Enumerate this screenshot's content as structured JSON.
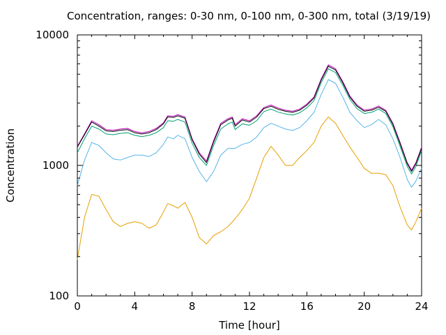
{
  "chart_data": {
    "type": "line",
    "title": "Concentration, ranges: 0-30 nm, 0-100 nm, 0-300 nm, total (3/19/19)",
    "xlabel": "Time [hour]",
    "ylabel": "Concentration",
    "xlim": [
      0,
      24
    ],
    "ylim": [
      100,
      10000
    ],
    "y_scale": "log",
    "grid": false,
    "x_ticks": [
      0,
      4,
      8,
      12,
      16,
      20,
      24
    ],
    "x_tick_labels": [
      "0",
      "4",
      "8",
      "12",
      "16",
      "20",
      "24"
    ],
    "y_ticks": [
      100,
      1000,
      10000
    ],
    "y_tick_labels": [
      "100",
      "1000",
      "10000"
    ],
    "series": [
      {
        "color": "#c000c0",
        "points": [
          [
            0,
            1400
          ],
          [
            0.5,
            1750
          ],
          [
            1.0,
            2200
          ],
          [
            1.5,
            2050
          ],
          [
            2.0,
            1880
          ],
          [
            2.5,
            1860
          ],
          [
            3.0,
            1900
          ],
          [
            3.5,
            1920
          ],
          [
            4.0,
            1820
          ],
          [
            4.5,
            1780
          ],
          [
            5.0,
            1820
          ],
          [
            5.5,
            1920
          ],
          [
            6.0,
            2120
          ],
          [
            6.3,
            2400
          ],
          [
            6.7,
            2380
          ],
          [
            7.0,
            2450
          ],
          [
            7.5,
            2350
          ],
          [
            8.0,
            1600
          ],
          [
            8.5,
            1250
          ],
          [
            9.0,
            1080
          ],
          [
            9.5,
            1550
          ],
          [
            10.0,
            2100
          ],
          [
            10.5,
            2280
          ],
          [
            10.8,
            2350
          ],
          [
            11.0,
            2050
          ],
          [
            11.5,
            2280
          ],
          [
            12.0,
            2200
          ],
          [
            12.5,
            2400
          ],
          [
            13.0,
            2780
          ],
          [
            13.5,
            2900
          ],
          [
            14.0,
            2750
          ],
          [
            14.5,
            2650
          ],
          [
            15.0,
            2600
          ],
          [
            15.5,
            2700
          ],
          [
            16.0,
            2950
          ],
          [
            16.5,
            3350
          ],
          [
            17.0,
            4600
          ],
          [
            17.5,
            5900
          ],
          [
            18.0,
            5500
          ],
          [
            18.5,
            4400
          ],
          [
            19.0,
            3400
          ],
          [
            19.5,
            2900
          ],
          [
            20.0,
            2650
          ],
          [
            20.5,
            2700
          ],
          [
            21.0,
            2850
          ],
          [
            21.5,
            2650
          ],
          [
            22.0,
            2100
          ],
          [
            22.5,
            1500
          ],
          [
            23.0,
            1050
          ],
          [
            23.3,
            920
          ],
          [
            23.6,
            1050
          ],
          [
            24.0,
            1380
          ]
        ]
      },
      {
        "color": "#000000",
        "points": [
          [
            0,
            1380
          ],
          [
            0.5,
            1720
          ],
          [
            1.0,
            2150
          ],
          [
            1.5,
            2000
          ],
          [
            2.0,
            1840
          ],
          [
            2.5,
            1820
          ],
          [
            3.0,
            1860
          ],
          [
            3.5,
            1880
          ],
          [
            4.0,
            1780
          ],
          [
            4.5,
            1740
          ],
          [
            5.0,
            1780
          ],
          [
            5.5,
            1880
          ],
          [
            6.0,
            2080
          ],
          [
            6.3,
            2350
          ],
          [
            6.7,
            2330
          ],
          [
            7.0,
            2400
          ],
          [
            7.5,
            2300
          ],
          [
            8.0,
            1570
          ],
          [
            8.5,
            1220
          ],
          [
            9.0,
            1050
          ],
          [
            9.5,
            1510
          ],
          [
            10.0,
            2050
          ],
          [
            10.5,
            2230
          ],
          [
            10.8,
            2300
          ],
          [
            11.0,
            2000
          ],
          [
            11.5,
            2230
          ],
          [
            12.0,
            2150
          ],
          [
            12.5,
            2350
          ],
          [
            13.0,
            2720
          ],
          [
            13.5,
            2840
          ],
          [
            14.0,
            2690
          ],
          [
            14.5,
            2600
          ],
          [
            15.0,
            2550
          ],
          [
            15.5,
            2650
          ],
          [
            16.0,
            2890
          ],
          [
            16.5,
            3280
          ],
          [
            17.0,
            4500
          ],
          [
            17.5,
            5750
          ],
          [
            18.0,
            5380
          ],
          [
            18.5,
            4300
          ],
          [
            19.0,
            3330
          ],
          [
            19.5,
            2840
          ],
          [
            20.0,
            2600
          ],
          [
            20.5,
            2650
          ],
          [
            21.0,
            2790
          ],
          [
            21.5,
            2600
          ],
          [
            22.0,
            2060
          ],
          [
            22.5,
            1470
          ],
          [
            23.0,
            1030
          ],
          [
            23.3,
            900
          ],
          [
            23.6,
            1030
          ],
          [
            24.0,
            1350
          ]
        ]
      },
      {
        "color": "#009e73",
        "points": [
          [
            0,
            1250
          ],
          [
            0.5,
            1600
          ],
          [
            1.0,
            2000
          ],
          [
            1.5,
            1900
          ],
          [
            2.0,
            1740
          ],
          [
            2.5,
            1720
          ],
          [
            3.0,
            1760
          ],
          [
            3.5,
            1780
          ],
          [
            4.0,
            1700
          ],
          [
            4.5,
            1660
          ],
          [
            5.0,
            1700
          ],
          [
            5.5,
            1780
          ],
          [
            6.0,
            1950
          ],
          [
            6.3,
            2200
          ],
          [
            6.7,
            2180
          ],
          [
            7.0,
            2250
          ],
          [
            7.5,
            2150
          ],
          [
            8.0,
            1480
          ],
          [
            8.5,
            1150
          ],
          [
            9.0,
            1000
          ],
          [
            9.5,
            1420
          ],
          [
            10.0,
            1900
          ],
          [
            10.5,
            2080
          ],
          [
            10.8,
            2150
          ],
          [
            11.0,
            1880
          ],
          [
            11.5,
            2080
          ],
          [
            12.0,
            2030
          ],
          [
            12.5,
            2200
          ],
          [
            13.0,
            2580
          ],
          [
            13.5,
            2700
          ],
          [
            14.0,
            2560
          ],
          [
            14.5,
            2480
          ],
          [
            15.0,
            2430
          ],
          [
            15.5,
            2530
          ],
          [
            16.0,
            2760
          ],
          [
            16.5,
            3130
          ],
          [
            17.0,
            4300
          ],
          [
            17.5,
            5500
          ],
          [
            18.0,
            5150
          ],
          [
            18.5,
            4120
          ],
          [
            19.0,
            3200
          ],
          [
            19.5,
            2720
          ],
          [
            20.0,
            2500
          ],
          [
            20.5,
            2550
          ],
          [
            21.0,
            2700
          ],
          [
            21.5,
            2500
          ],
          [
            22.0,
            1980
          ],
          [
            22.5,
            1400
          ],
          [
            23.0,
            980
          ],
          [
            23.3,
            860
          ],
          [
            23.6,
            980
          ],
          [
            24.0,
            1300
          ]
        ]
      },
      {
        "color": "#56b4e9",
        "points": [
          [
            0,
            700
          ],
          [
            0.5,
            1100
          ],
          [
            1.0,
            1500
          ],
          [
            1.5,
            1420
          ],
          [
            2.0,
            1250
          ],
          [
            2.5,
            1120
          ],
          [
            3.0,
            1100
          ],
          [
            3.5,
            1150
          ],
          [
            4.0,
            1200
          ],
          [
            4.5,
            1200
          ],
          [
            5.0,
            1170
          ],
          [
            5.5,
            1250
          ],
          [
            6.0,
            1450
          ],
          [
            6.3,
            1650
          ],
          [
            6.7,
            1600
          ],
          [
            7.0,
            1700
          ],
          [
            7.5,
            1600
          ],
          [
            8.0,
            1150
          ],
          [
            8.5,
            900
          ],
          [
            9.0,
            750
          ],
          [
            9.5,
            900
          ],
          [
            10.0,
            1200
          ],
          [
            10.5,
            1350
          ],
          [
            11.0,
            1350
          ],
          [
            11.5,
            1450
          ],
          [
            12.0,
            1500
          ],
          [
            12.5,
            1650
          ],
          [
            13.0,
            1950
          ],
          [
            13.5,
            2100
          ],
          [
            14.0,
            2000
          ],
          [
            14.5,
            1900
          ],
          [
            15.0,
            1850
          ],
          [
            15.5,
            1950
          ],
          [
            16.0,
            2200
          ],
          [
            16.5,
            2550
          ],
          [
            17.0,
            3500
          ],
          [
            17.5,
            4550
          ],
          [
            18.0,
            4250
          ],
          [
            18.5,
            3350
          ],
          [
            19.0,
            2550
          ],
          [
            19.5,
            2200
          ],
          [
            20.0,
            1950
          ],
          [
            20.5,
            2050
          ],
          [
            21.0,
            2250
          ],
          [
            21.5,
            2050
          ],
          [
            22.0,
            1600
          ],
          [
            22.5,
            1150
          ],
          [
            23.0,
            780
          ],
          [
            23.3,
            680
          ],
          [
            23.6,
            760
          ],
          [
            24.0,
            950
          ]
        ]
      },
      {
        "color": "#e69f00",
        "points": [
          [
            0,
            190
          ],
          [
            0.5,
            400
          ],
          [
            1.0,
            600
          ],
          [
            1.5,
            580
          ],
          [
            2.0,
            460
          ],
          [
            2.5,
            370
          ],
          [
            3.0,
            340
          ],
          [
            3.5,
            360
          ],
          [
            4.0,
            370
          ],
          [
            4.5,
            360
          ],
          [
            5.0,
            330
          ],
          [
            5.5,
            350
          ],
          [
            6.0,
            440
          ],
          [
            6.3,
            510
          ],
          [
            6.7,
            490
          ],
          [
            7.0,
            470
          ],
          [
            7.5,
            520
          ],
          [
            8.0,
            400
          ],
          [
            8.5,
            280
          ],
          [
            9.0,
            250
          ],
          [
            9.5,
            290
          ],
          [
            10.0,
            310
          ],
          [
            10.5,
            340
          ],
          [
            11.0,
            390
          ],
          [
            11.5,
            460
          ],
          [
            12.0,
            560
          ],
          [
            12.5,
            800
          ],
          [
            13.0,
            1150
          ],
          [
            13.5,
            1400
          ],
          [
            14.0,
            1200
          ],
          [
            14.5,
            1000
          ],
          [
            15.0,
            1000
          ],
          [
            15.5,
            1150
          ],
          [
            16.0,
            1300
          ],
          [
            16.5,
            1500
          ],
          [
            17.0,
            2000
          ],
          [
            17.5,
            2350
          ],
          [
            18.0,
            2100
          ],
          [
            18.5,
            1700
          ],
          [
            19.0,
            1380
          ],
          [
            19.5,
            1150
          ],
          [
            20.0,
            950
          ],
          [
            20.5,
            870
          ],
          [
            21.0,
            870
          ],
          [
            21.5,
            850
          ],
          [
            22.0,
            700
          ],
          [
            22.5,
            480
          ],
          [
            23.0,
            350
          ],
          [
            23.3,
            320
          ],
          [
            23.6,
            370
          ],
          [
            24.0,
            470
          ]
        ]
      }
    ]
  }
}
